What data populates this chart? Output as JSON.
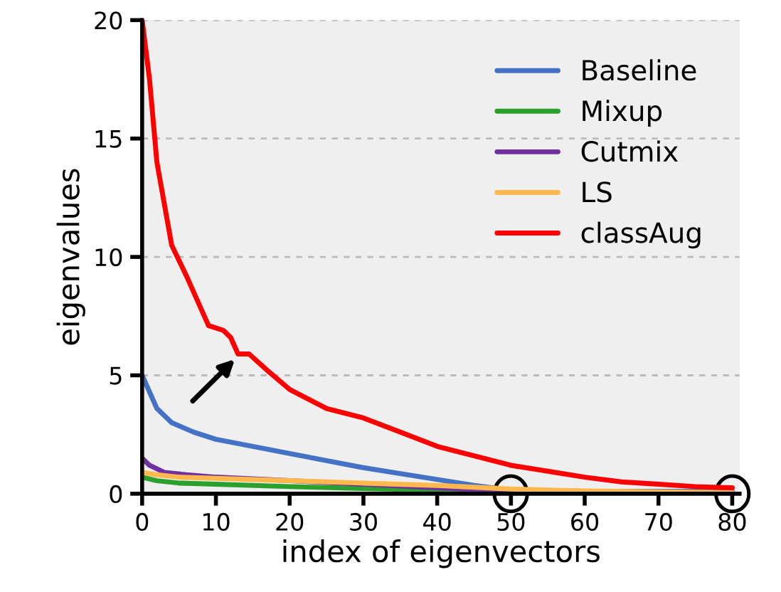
{
  "chart_data": {
    "type": "line",
    "xlabel": "index of eigenvectors",
    "ylabel": "eigenvalues",
    "xlim": [
      0,
      81
    ],
    "ylim": [
      0,
      20
    ],
    "xticks": [
      0,
      10,
      20,
      30,
      40,
      50,
      60,
      70,
      80
    ],
    "yticks": [
      0,
      5,
      10,
      15,
      20
    ],
    "grid": "y",
    "legend": "top right",
    "line_style": "solid",
    "marker": "none",
    "series": [
      {
        "name": "Baseline",
        "color": "#4472c4",
        "x": [
          0,
          2,
          4,
          7,
          10,
          15,
          20,
          25,
          30,
          35,
          40,
          45,
          50,
          60,
          70,
          80
        ],
        "values": [
          5.0,
          3.6,
          3.0,
          2.6,
          2.3,
          2.0,
          1.7,
          1.4,
          1.1,
          0.85,
          0.6,
          0.35,
          0.15,
          0.1,
          0.1,
          0.1
        ]
      },
      {
        "name": "Mixup",
        "color": "#2ca02c",
        "x": [
          0,
          2,
          5,
          10,
          20,
          30,
          40,
          50
        ],
        "values": [
          0.7,
          0.55,
          0.45,
          0.4,
          0.3,
          0.22,
          0.15,
          0.05
        ]
      },
      {
        "name": "Cutmix",
        "color": "#7030a0",
        "x": [
          0,
          1,
          3,
          6,
          10,
          20,
          30,
          40,
          50,
          60,
          80
        ],
        "values": [
          1.5,
          1.2,
          0.9,
          0.8,
          0.7,
          0.55,
          0.4,
          0.25,
          0.1,
          0.07,
          0.05
        ]
      },
      {
        "name": "LS",
        "color": "#ffb84d",
        "x": [
          0,
          2,
          5,
          10,
          20,
          30,
          40,
          50,
          60,
          70,
          80
        ],
        "values": [
          0.9,
          0.8,
          0.7,
          0.65,
          0.55,
          0.45,
          0.35,
          0.2,
          0.12,
          0.08,
          0.05
        ]
      },
      {
        "name": "classAug",
        "color": "#ff0000",
        "x": [
          0,
          1,
          2,
          4,
          6,
          9,
          11,
          12,
          13,
          14.5,
          17,
          20,
          25,
          30,
          35,
          40,
          45,
          50,
          55,
          60,
          65,
          70,
          75,
          80
        ],
        "values": [
          20,
          17.5,
          14,
          10.5,
          9.2,
          7.1,
          6.9,
          6.6,
          5.9,
          5.9,
          5.2,
          4.4,
          3.6,
          3.2,
          2.6,
          2.0,
          1.6,
          1.2,
          0.95,
          0.7,
          0.5,
          0.4,
          0.3,
          0.25
        ]
      }
    ]
  }
}
